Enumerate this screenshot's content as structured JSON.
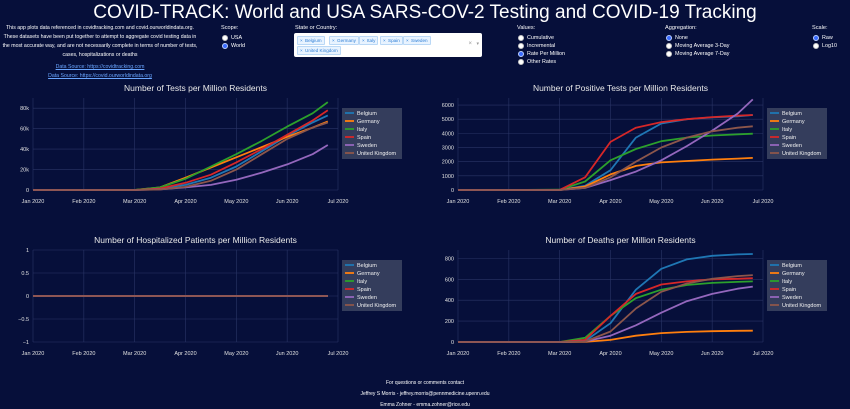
{
  "header": {
    "title": "COVID-TRACK: World and USA SARS-COV-2 Testing and COVID-19 Tracking",
    "intro_text": "This app plots data referenced in covidtracking.com and covid.ourworldindata.org. These datasets have been put together to attempt to aggregate covid testing data in the most accurate way, and are not necessarily complete in terms of number of tests, cases, hospitalizations or deaths",
    "link1": "Data Source: https://covidtracking.com",
    "link2": "Data Source: https://covid.ourworldindata.org"
  },
  "controls": {
    "scope": {
      "label": "Scope:",
      "options": [
        "USA",
        "World"
      ],
      "selected": "World"
    },
    "country": {
      "label": "State or Country:",
      "chips": [
        "Belgium",
        "Germany",
        "Italy",
        "Spain",
        "Sweden",
        "United Kingdom"
      ],
      "clear": "×",
      "caret": "▾",
      "chip_x": "×"
    },
    "values": {
      "label": "Values:",
      "options": [
        "Cumulative",
        "Incremental",
        "Rate Per Million",
        "Other Rates"
      ],
      "selected": "Rate Per Million"
    },
    "aggregation": {
      "label": "Aggregation:",
      "options": [
        "None",
        "Moving Average 3-Day",
        "Moving Average 7-Day"
      ],
      "selected": "None"
    },
    "scale": {
      "label": "Scale:",
      "options": [
        "Raw",
        "Log10"
      ],
      "selected": "Raw"
    }
  },
  "footer": {
    "line1": "For questions or comments contact",
    "line2": "Jeffrey S Morris - jeffrey.morris@pennmedicine.upenn.edu",
    "line3": "Emma Zohner - emma.zohner@rice.edu"
  },
  "colors": {
    "background": "#060f3a",
    "Belgium": "#1f77b4",
    "Germany": "#ff7f0e",
    "Italy": "#2ca02c",
    "Spain": "#d62728",
    "Sweden": "#9467bd",
    "United Kingdom": "#8c564b"
  },
  "chart_data": [
    {
      "type": "line",
      "title": "Number of Tests per Million Residents",
      "xticks": [
        "Jan 2020",
        "Feb 2020",
        "Mar 2020",
        "Apr 2020",
        "May 2020",
        "Jun 2020",
        "Jul 2020"
      ],
      "yticks": [
        "0",
        "20k",
        "40k",
        "60k",
        "80k"
      ],
      "ylim": [
        0,
        90000
      ],
      "legend_position": "top-right",
      "x": [
        0,
        1,
        2,
        2.5,
        3,
        3.5,
        4,
        4.5,
        5,
        5.5,
        5.8
      ],
      "series": [
        {
          "name": "Belgium",
          "values": [
            0,
            0,
            0,
            1500,
            5000,
            12000,
            23000,
            38000,
            53000,
            66000,
            73000
          ]
        },
        {
          "name": "Germany",
          "values": [
            0,
            0,
            0,
            2500,
            12000,
            22000,
            32000,
            42000,
            52000,
            61000,
            67000
          ]
        },
        {
          "name": "Italy",
          "values": [
            0,
            0,
            100,
            2500,
            11000,
            23000,
            35000,
            48000,
            62000,
            75000,
            86000
          ]
        },
        {
          "name": "Spain",
          "values": [
            0,
            0,
            0,
            1500,
            7000,
            15000,
            27000,
            40000,
            54000,
            68000,
            78000
          ]
        },
        {
          "name": "Sweden",
          "values": [
            0,
            0,
            0,
            600,
            2500,
            5000,
            10000,
            17000,
            25000,
            35000,
            44000
          ]
        },
        {
          "name": "United Kingdom",
          "values": [
            0,
            0,
            0,
            500,
            3000,
            9000,
            20000,
            35000,
            50000,
            61000,
            66000
          ]
        }
      ]
    },
    {
      "type": "line",
      "title": "Number of Positive Tests per Million Residents",
      "xticks": [
        "Jan 2020",
        "Feb 2020",
        "Mar 2020",
        "Apr 2020",
        "May 2020",
        "Jun 2020",
        "Jul 2020"
      ],
      "yticks": [
        "0",
        "1000",
        "2000",
        "3000",
        "4000",
        "5000",
        "6000"
      ],
      "ylim": [
        0,
        6500
      ],
      "legend_position": "top-right",
      "x": [
        0,
        1,
        2,
        2.5,
        3,
        3.5,
        4,
        4.5,
        5,
        5.5,
        5.8
      ],
      "series": [
        {
          "name": "Belgium",
          "values": [
            0,
            0,
            2,
            300,
            1400,
            3700,
            4700,
            5000,
            5130,
            5200,
            5300
          ]
        },
        {
          "name": "Germany",
          "values": [
            0,
            0,
            1,
            250,
            1100,
            1700,
            1950,
            2050,
            2150,
            2220,
            2270
          ]
        },
        {
          "name": "Italy",
          "values": [
            0,
            0,
            20,
            600,
            2100,
            2900,
            3450,
            3700,
            3850,
            3930,
            3980
          ]
        },
        {
          "name": "Spain",
          "values": [
            0,
            0,
            10,
            900,
            3400,
            4400,
            4800,
            5000,
            5150,
            5250,
            5300
          ]
        },
        {
          "name": "Sweden",
          "values": [
            0,
            0,
            1,
            150,
            700,
            1300,
            2100,
            3100,
            4200,
            5400,
            6400
          ]
        },
        {
          "name": "United Kingdom",
          "values": [
            0,
            0,
            0,
            150,
            900,
            2000,
            3000,
            3700,
            4150,
            4400,
            4500
          ]
        }
      ]
    },
    {
      "type": "line",
      "title": "Number of Hospitalized Patients per Million Residents",
      "xticks": [
        "Jan 2020",
        "Feb 2020",
        "Mar 2020",
        "Apr 2020",
        "May 2020",
        "Jun 2020",
        "Jul 2020"
      ],
      "yticks": [
        "−1",
        "−0.5",
        "0",
        "0.5",
        "1"
      ],
      "ylim": [
        -1,
        1
      ],
      "legend_position": "top-right",
      "x": [
        0,
        5.8
      ],
      "series": [
        {
          "name": "Belgium",
          "values": [
            0,
            0
          ]
        },
        {
          "name": "Germany",
          "values": [
            0,
            0
          ]
        },
        {
          "name": "Italy",
          "values": [
            0,
            0
          ]
        },
        {
          "name": "Spain",
          "values": [
            0,
            0
          ]
        },
        {
          "name": "Sweden",
          "values": [
            0,
            0
          ]
        },
        {
          "name": "United Kingdom",
          "values": [
            0,
            0
          ]
        }
      ]
    },
    {
      "type": "line",
      "title": "Number of Deaths per Million Residents",
      "xticks": [
        "Jan 2020",
        "Feb 2020",
        "Mar 2020",
        "Apr 2020",
        "May 2020",
        "Jun 2020",
        "Jul 2020"
      ],
      "yticks": [
        "0",
        "200",
        "400",
        "600",
        "800"
      ],
      "ylim": [
        0,
        880
      ],
      "legend_position": "top-right",
      "x": [
        0,
        1,
        2,
        2.5,
        3,
        3.5,
        4,
        4.5,
        5,
        5.5,
        5.8
      ],
      "series": [
        {
          "name": "Belgium",
          "values": [
            0,
            0,
            0,
            10,
            180,
            500,
            700,
            790,
            825,
            838,
            842
          ]
        },
        {
          "name": "Germany",
          "values": [
            0,
            0,
            0,
            1,
            20,
            60,
            85,
            97,
            103,
            107,
            108
          ]
        },
        {
          "name": "Italy",
          "values": [
            0,
            0,
            0,
            40,
            250,
            420,
            500,
            545,
            565,
            575,
            580
          ]
        },
        {
          "name": "Spain",
          "values": [
            0,
            0,
            0,
            20,
            250,
            460,
            550,
            580,
            600,
            605,
            610
          ]
        },
        {
          "name": "Sweden",
          "values": [
            0,
            0,
            0,
            5,
            60,
            160,
            280,
            390,
            460,
            510,
            530
          ]
        },
        {
          "name": "United Kingdom",
          "values": [
            0,
            0,
            0,
            5,
            100,
            320,
            480,
            560,
            605,
            630,
            640
          ]
        }
      ]
    }
  ]
}
